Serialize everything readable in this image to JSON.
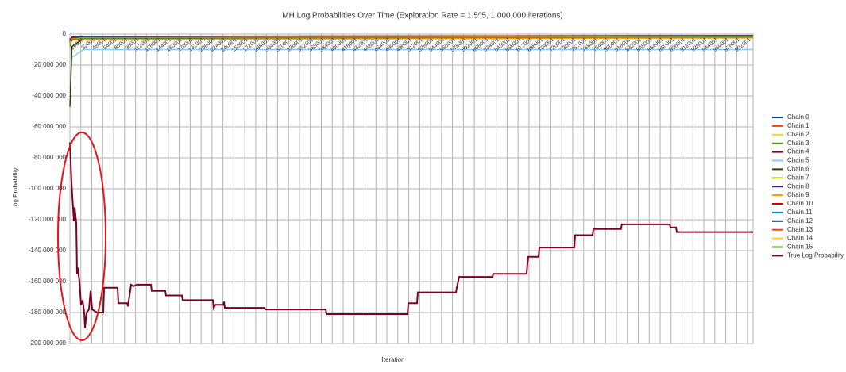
{
  "chart_data": {
    "type": "line",
    "title": "MH Log Probabilities Over Time (Exploration Rate = 1.5^5, 1,000,000 iterations)",
    "x_label": "Iteration",
    "y_label": "Log Probability",
    "xlim": [
      1,
      1000000
    ],
    "ylim": [
      -200000000,
      0
    ],
    "xticks": [
      1,
      16001,
      32001,
      48001,
      64001,
      80001,
      96001,
      112001,
      128001,
      144001,
      160001,
      176001,
      192001,
      208001,
      224001,
      240001,
      256001,
      272001,
      288001,
      304001,
      320001,
      336001,
      352001,
      368001,
      384001,
      400001,
      416001,
      432001,
      448001,
      464001,
      480001,
      496001,
      512001,
      528001,
      544001,
      560001,
      576001,
      592001,
      608001,
      624001,
      640001,
      656001,
      672001,
      688001,
      704001,
      720001,
      736001,
      752001,
      768001,
      784001,
      800001,
      816001,
      832001,
      848001,
      864001,
      880001,
      896001,
      912001,
      928001,
      944001,
      960001,
      976001,
      992001
    ],
    "yticks": [
      0,
      {
        "value": -20000000,
        "label": "-20 000 000"
      },
      {
        "value": -40000000,
        "label": "-40 000 000"
      },
      {
        "value": -60000000,
        "label": "-60 000 000"
      },
      {
        "value": -80000000,
        "label": "-80 000 000"
      },
      {
        "value": -100000000,
        "label": "-100 000 000"
      },
      {
        "value": -120000000,
        "label": "-120 000 000"
      },
      {
        "value": -140000000,
        "label": "-140 000 000"
      },
      {
        "value": -160000000,
        "label": "-160 000 000"
      },
      {
        "value": -180000000,
        "label": "-180 000 000"
      },
      {
        "value": -200000000,
        "label": "-200 000 000"
      }
    ],
    "grid": true,
    "legend": "right",
    "series": [
      {
        "name": "Chain 0",
        "color": "#004586",
        "x": [
          1,
          3000,
          20000,
          1000000
        ],
        "values": [
          -5000000,
          -2000000,
          -1500000,
          -1000000
        ]
      },
      {
        "name": "Chain 1",
        "color": "#ff420e",
        "x": [
          1,
          3000,
          20000,
          1000000
        ],
        "values": [
          -4000000,
          -2500000,
          -1800000,
          -1200000
        ]
      },
      {
        "name": "Chain 2",
        "color": "#ffd320",
        "x": [
          1,
          3000,
          20000,
          1000000
        ],
        "values": [
          -6000000,
          -3000000,
          -2200000,
          -1500000
        ]
      },
      {
        "name": "Chain 3",
        "color": "#579d1c",
        "x": [
          1,
          3000,
          20000,
          1000000
        ],
        "values": [
          -5500000,
          -2800000,
          -2000000,
          -1300000
        ]
      },
      {
        "name": "Chain 4",
        "color": "#7e0021",
        "x": [
          1,
          3000,
          20000,
          1000000
        ],
        "values": [
          -4500000,
          -2200000,
          -1600000,
          -1100000
        ]
      },
      {
        "name": "Chain 5",
        "color": "#83caff",
        "x": [
          1,
          3000,
          20000,
          1000000
        ],
        "values": [
          -35000000,
          -15000000,
          -10000000,
          -10000000
        ]
      },
      {
        "name": "Chain 6",
        "color": "#314004",
        "x": [
          1,
          3000,
          20000,
          1000000
        ],
        "values": [
          -47000000,
          -8000000,
          -3000000,
          -2000000
        ]
      },
      {
        "name": "Chain 7",
        "color": "#aecf00",
        "x": [
          1,
          3000,
          20000,
          1000000
        ],
        "values": [
          -6500000,
          -3200000,
          -2400000,
          -1700000
        ]
      },
      {
        "name": "Chain 8",
        "color": "#4b1f6f",
        "x": [
          1,
          3000,
          20000,
          1000000
        ],
        "values": [
          -5000000,
          -2600000,
          -1900000,
          -1400000
        ]
      },
      {
        "name": "Chain 9",
        "color": "#ff950e",
        "x": [
          1,
          3000,
          20000,
          1000000
        ],
        "values": [
          -7000000,
          -4000000,
          -3500000,
          -2500000
        ]
      },
      {
        "name": "Chain 10",
        "color": "#c5000b",
        "x": [
          1,
          3000,
          20000,
          1000000
        ],
        "values": [
          -4000000,
          -2000000,
          -1500000,
          -1000000
        ]
      },
      {
        "name": "Chain 11",
        "color": "#0084d1",
        "x": [
          1,
          3000,
          20000,
          1000000
        ],
        "values": [
          -6000000,
          -2900000,
          -2100000,
          -1500000
        ]
      },
      {
        "name": "Chain 12",
        "color": "#004586",
        "x": [
          1,
          3000,
          20000,
          1000000
        ],
        "values": [
          -5200000,
          -2400000,
          -1700000,
          -1200000
        ]
      },
      {
        "name": "Chain 13",
        "color": "#ff420e",
        "x": [
          1,
          3000,
          20000,
          1000000
        ],
        "values": [
          -5800000,
          -3100000,
          -2300000,
          -1600000
        ]
      },
      {
        "name": "Chain 14",
        "color": "#ffd320",
        "x": [
          1,
          3000,
          20000,
          1000000
        ],
        "values": [
          -6200000,
          -3300000,
          -2500000,
          -1800000
        ]
      },
      {
        "name": "Chain 15",
        "color": "#579d1c",
        "x": [
          1,
          3000,
          20000,
          1000000
        ],
        "values": [
          -8000000,
          -3500000,
          -2600000,
          -1900000
        ]
      },
      {
        "name": "True Log Probability",
        "color": "#7e0021",
        "x": [
          1,
          2326,
          5814,
          6977,
          9302,
          10465,
          11628,
          13953,
          16279,
          18605,
          20930,
          22093,
          24419,
          27907,
          30233,
          32558,
          39535,
          48837,
          50000,
          69767,
          70930,
          83721,
          84884,
          87209,
          89535,
          93023,
          97674,
          118605,
          119767,
          139535,
          140698,
          163953,
          165116,
          209302,
          210465,
          212791,
          224419,
          225581,
          226744,
          284884,
          286047,
          374419,
          375581,
          494186,
          495349,
          508140,
          509302,
          565116,
          566279,
          569767,
          618605,
          619767,
          668605,
          669767,
          670930,
          686047,
          687209,
          738372,
          739535,
          765116,
          766279,
          806744,
          807907,
          877907,
          879070,
          887209,
          888372,
          1000000
        ],
        "values": [
          -70000000,
          -96000000,
          -121000000,
          -112000000,
          -122000000,
          -155000000,
          -151000000,
          -160000000,
          -175000000,
          -172000000,
          -180000000,
          -190000000,
          -180000000,
          -178000000,
          -166000000,
          -178000000,
          -180000000,
          -180000000,
          -164000000,
          -164000000,
          -174000000,
          -174000000,
          -176000000,
          -169000000,
          -162000000,
          -163000000,
          -162000000,
          -162000000,
          -166000000,
          -166000000,
          -169000000,
          -169000000,
          -172000000,
          -172000000,
          -177000000,
          -175000000,
          -175000000,
          -173000000,
          -177000000,
          -177000000,
          -178000000,
          -178000000,
          -181000000,
          -181000000,
          -174000000,
          -174000000,
          -167000000,
          -167000000,
          -164000000,
          -157000000,
          -157000000,
          -155000000,
          -155000000,
          -148000000,
          -144000000,
          -144000000,
          -138000000,
          -138000000,
          -130000000,
          -130000000,
          -126000000,
          -126000000,
          -123000000,
          -123000000,
          -125000000,
          -125000000,
          -128000000,
          -128000000
        ]
      }
    ]
  }
}
